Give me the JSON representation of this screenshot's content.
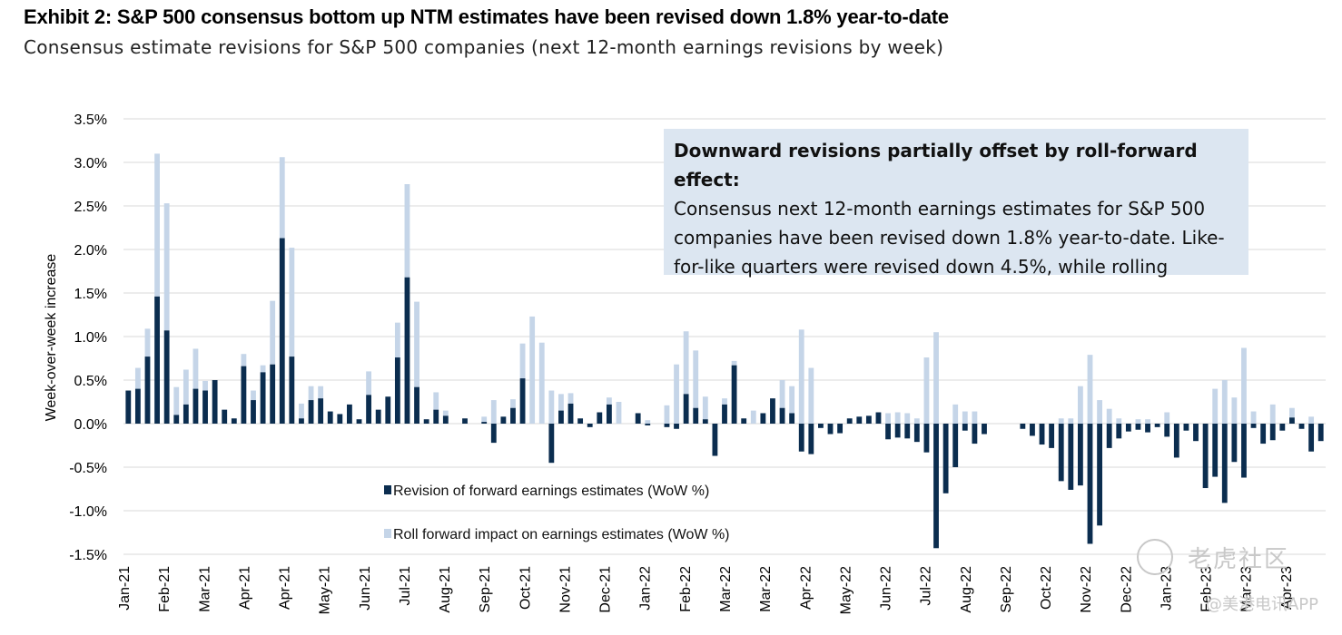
{
  "header": {
    "title": "Exhibit 2: S&P 500 consensus bottom up NTM estimates have been revised down 1.8% year-to-date",
    "subtitle": "Consensus estimate revisions for S&P 500 companies (next 12-month earnings revisions by week)"
  },
  "annotation": {
    "title": "Downward revisions partially offset by roll-forward effect:",
    "body": "Consensus next 12-month earnings estimates for S&P 500 companies have been revised down 1.8% year-to-date. Like-for-like quarters were revised down 4.5%, while rolling"
  },
  "watermark": {
    "text1": "老虎社区",
    "text2": "@美港电讯APP"
  },
  "chart_data": {
    "type": "bar",
    "ylabel": "Week-over-week increase",
    "ylim": [
      -1.5,
      3.5
    ],
    "yticks": [
      3.5,
      3.0,
      2.5,
      2.0,
      1.5,
      1.0,
      0.5,
      0.0,
      -0.5,
      -1.0,
      -1.5
    ],
    "yticklabels": [
      "3.5%",
      "3.0%",
      "2.5%",
      "2.0%",
      "1.5%",
      "1.0%",
      "0.5%",
      "0.0%",
      "-0.5%",
      "-1.0%",
      "-1.5%"
    ],
    "xticklabels": [
      "Jan-21",
      "Feb-21",
      "Mar-21",
      "Apr-21",
      "Apr-21",
      "May-21",
      "Jun-21",
      "Jul-21",
      "Aug-21",
      "Sep-21",
      "Oct-21",
      "Nov-21",
      "Dec-21",
      "Jan-22",
      "Feb-22",
      "Mar-22",
      "Mar-22",
      "Apr-22",
      "May-22",
      "Jun-22",
      "Jul-22",
      "Aug-22",
      "Sep-22",
      "Oct-22",
      "Nov-22",
      "Dec-22",
      "Jan-23",
      "Feb-23",
      "Mar-23",
      "Apr-23"
    ],
    "grid": true,
    "legend_position": "bottom-left inside plot",
    "colors": {
      "revision": "#0b2d4f",
      "roll_forward": "#c5d5e8"
    },
    "series": [
      {
        "name": "Revision of forward earnings estimates (WoW %)",
        "values": [
          0.38,
          0.4,
          0.77,
          1.46,
          1.07,
          0.1,
          0.22,
          0.4,
          0.38,
          0.5,
          0.16,
          0.06,
          0.66,
          0.27,
          0.59,
          0.68,
          2.13,
          0.77,
          0.06,
          0.27,
          0.29,
          0.14,
          0.11,
          0.22,
          0.05,
          0.33,
          0.16,
          0.31,
          0.76,
          1.68,
          0.42,
          0.05,
          0.16,
          0.09,
          0.0,
          0.06,
          0.0,
          0.02,
          -0.22,
          0.08,
          0.18,
          0.52,
          0.0,
          0.0,
          -0.45,
          0.15,
          0.23,
          0.06,
          -0.04,
          0.13,
          0.22,
          0.0,
          0.0,
          0.12,
          -0.02,
          0.0,
          -0.04,
          -0.06,
          0.34,
          0.18,
          0.05,
          -0.37,
          0.22,
          0.67,
          0.06,
          0.0,
          0.12,
          0.29,
          0.18,
          0.12,
          -0.32,
          -0.35,
          -0.05,
          -0.12,
          -0.11,
          0.06,
          0.08,
          0.09,
          0.13,
          -0.18,
          -0.16,
          -0.17,
          -0.21,
          -0.33,
          -1.43,
          -0.8,
          -0.5,
          -0.08,
          -0.23,
          -0.12,
          0.0,
          0.0,
          0.0,
          -0.06,
          -0.14,
          -0.24,
          -0.28,
          -0.66,
          -0.76,
          -0.71,
          -1.38,
          -1.17,
          -0.28,
          -0.17,
          -0.09,
          -0.07,
          -0.1,
          -0.04,
          -0.15,
          -0.39,
          -0.08,
          -0.2,
          -0.74,
          -0.61,
          -0.91,
          -0.44,
          -0.62,
          -0.05,
          -0.23,
          -0.19,
          -0.08,
          0.07,
          -0.06,
          -0.32,
          -0.2
        ]
      },
      {
        "name": "Roll forward impact on earnings estimates (WoW %)",
        "values": [
          0.0,
          0.24,
          0.32,
          1.64,
          1.46,
          0.32,
          0.4,
          0.46,
          0.11,
          0.0,
          0.0,
          0.0,
          0.14,
          0.11,
          0.08,
          0.73,
          0.93,
          1.25,
          0.17,
          0.16,
          0.14,
          0.0,
          0.0,
          0.0,
          0.0,
          0.27,
          0.0,
          0.0,
          0.4,
          1.07,
          0.98,
          0.0,
          0.2,
          0.06,
          0.0,
          0.0,
          0.0,
          0.06,
          0.27,
          0.0,
          0.1,
          0.4,
          1.23,
          0.93,
          0.38,
          0.19,
          0.12,
          0.0,
          0.0,
          0.0,
          0.08,
          0.25,
          0.0,
          0.0,
          0.04,
          0.0,
          0.21,
          0.68,
          0.72,
          0.66,
          0.26,
          0.0,
          0.07,
          0.05,
          0.0,
          0.15,
          0.0,
          0.0,
          0.32,
          0.31,
          1.08,
          0.64,
          0.0,
          0.0,
          0.0,
          0.0,
          0.0,
          0.0,
          0.0,
          0.12,
          0.13,
          0.12,
          0.06,
          0.76,
          1.05,
          0.0,
          0.22,
          0.14,
          0.14,
          0.0,
          0.0,
          0.0,
          0.0,
          0.0,
          0.0,
          0.0,
          0.0,
          0.06,
          0.06,
          0.43,
          0.79,
          0.27,
          0.17,
          0.06,
          0.0,
          0.05,
          0.05,
          0.0,
          0.13,
          0.0,
          0.0,
          0.0,
          0.0,
          0.4,
          0.5,
          0.3,
          0.87,
          0.14,
          0.0,
          0.22,
          0.0,
          0.11,
          0.0,
          0.08,
          0.0
        ]
      }
    ]
  }
}
